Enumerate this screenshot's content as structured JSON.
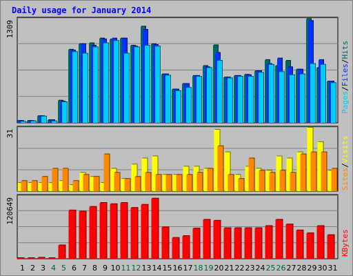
{
  "title": "Daily usage for January 2014",
  "colors": {
    "background": "#c0c0c0",
    "panel": "#c0c0c0",
    "grid": "#808080",
    "hits": "#006666",
    "files": "#0033ff",
    "pages": "#00ccff",
    "visits": "#ff8800",
    "sites": "#ffff00",
    "kbytes": "#ff0000",
    "weekend_label": "#006633",
    "weekday_label": "#000000"
  },
  "legend": {
    "top": [
      "Pages",
      "/",
      "Files",
      "/",
      "Hits"
    ],
    "middle": [
      "Sites",
      "/",
      "Visits"
    ],
    "bottom": [
      "KBytes"
    ]
  },
  "chart_data": [
    {
      "type": "bar",
      "panel": "hits-files-pages",
      "ylim": [
        0,
        1309
      ],
      "y_tick_label": "1309",
      "categories": [
        "1",
        "2",
        "3",
        "4",
        "5",
        "6",
        "7",
        "8",
        "9",
        "10",
        "11",
        "12",
        "13",
        "14",
        "15",
        "16",
        "17",
        "18",
        "19",
        "20",
        "21",
        "22",
        "23",
        "24",
        "25",
        "26",
        "27",
        "28",
        "29",
        "30",
        "31"
      ],
      "series": [
        {
          "name": "Hits",
          "values": [
            25,
            25,
            85,
            35,
            280,
            920,
            990,
            1000,
            1060,
            1050,
            1060,
            970,
            1210,
            990,
            610,
            420,
            490,
            590,
            715,
            975,
            570,
            590,
            605,
            650,
            790,
            715,
            780,
            670,
            1305,
            690,
            520
          ]
        },
        {
          "name": "Files",
          "values": [
            25,
            25,
            85,
            35,
            270,
            910,
            990,
            970,
            1050,
            1060,
            1060,
            960,
            1170,
            980,
            610,
            420,
            490,
            590,
            700,
            880,
            570,
            590,
            600,
            650,
            740,
            810,
            700,
            670,
            1280,
            790,
            520
          ]
        },
        {
          "name": "Pages",
          "values": [
            15,
            20,
            80,
            20,
            260,
            890,
            870,
            950,
            1000,
            1030,
            870,
            950,
            970,
            960,
            595,
            400,
            440,
            580,
            690,
            780,
            560,
            580,
            580,
            630,
            730,
            640,
            600,
            610,
            740,
            730,
            500
          ]
        }
      ]
    },
    {
      "type": "bar",
      "panel": "visits-sites",
      "ylim": [
        0,
        31
      ],
      "y_tick_label": "31",
      "categories": [
        "1",
        "2",
        "3",
        "4",
        "5",
        "6",
        "7",
        "8",
        "9",
        "10",
        "11",
        "12",
        "13",
        "14",
        "15",
        "16",
        "17",
        "18",
        "19",
        "20",
        "21",
        "22",
        "23",
        "24",
        "25",
        "26",
        "27",
        "28",
        "29",
        "30",
        "31"
      ],
      "series": [
        {
          "name": "Sites",
          "values": [
            4,
            4,
            4,
            4,
            5,
            3,
            9,
            7,
            4,
            11,
            6,
            13,
            16,
            17,
            8,
            8,
            12,
            12,
            11,
            30,
            19,
            8,
            12,
            11,
            10,
            17,
            16,
            19,
            31,
            24,
            10
          ]
        },
        {
          "name": "Visits",
          "values": [
            5,
            5,
            7,
            11,
            11,
            5,
            8,
            7,
            18,
            9,
            6,
            7,
            9,
            8,
            8,
            8,
            8,
            9,
            11,
            22,
            8,
            6,
            16,
            10,
            9,
            10,
            9,
            18,
            19,
            19,
            11
          ]
        }
      ]
    },
    {
      "type": "bar",
      "panel": "kbytes",
      "ylim": [
        0,
        120649
      ],
      "y_tick_label": "120649",
      "categories": [
        "1",
        "2",
        "3",
        "4",
        "5",
        "6",
        "7",
        "8",
        "9",
        "10",
        "11",
        "12",
        "13",
        "14",
        "15",
        "16",
        "17",
        "18",
        "19",
        "20",
        "21",
        "22",
        "23",
        "24",
        "25",
        "26",
        "27",
        "28",
        "29",
        "30",
        "31"
      ],
      "series": [
        {
          "name": "KBytes",
          "values": [
            900,
            900,
            2100,
            900,
            25800,
            93000,
            91000,
            99800,
            107400,
            105000,
            107400,
            97800,
            103800,
            115800,
            60600,
            40200,
            43800,
            58200,
            75000,
            73200,
            58800,
            58800,
            58800,
            58800,
            63000,
            75000,
            66000,
            54600,
            49200,
            63000,
            45600
          ]
        }
      ]
    }
  ],
  "x_labels": [
    {
      "text": "1",
      "weekend": false
    },
    {
      "text": "2",
      "weekend": false
    },
    {
      "text": "3",
      "weekend": false
    },
    {
      "text": "4",
      "weekend": true
    },
    {
      "text": "5",
      "weekend": true
    },
    {
      "text": "6",
      "weekend": false
    },
    {
      "text": "7",
      "weekend": false
    },
    {
      "text": "8",
      "weekend": false
    },
    {
      "text": "9",
      "weekend": false
    },
    {
      "text": "10",
      "weekend": false
    },
    {
      "text": "11",
      "weekend": true
    },
    {
      "text": "12",
      "weekend": true
    },
    {
      "text": "13",
      "weekend": false
    },
    {
      "text": "14",
      "weekend": false
    },
    {
      "text": "15",
      "weekend": false
    },
    {
      "text": "16",
      "weekend": false
    },
    {
      "text": "17",
      "weekend": false
    },
    {
      "text": "18",
      "weekend": true
    },
    {
      "text": "19",
      "weekend": true
    },
    {
      "text": "20",
      "weekend": false
    },
    {
      "text": "21",
      "weekend": false
    },
    {
      "text": "22",
      "weekend": false
    },
    {
      "text": "23",
      "weekend": false
    },
    {
      "text": "24",
      "weekend": false
    },
    {
      "text": "25",
      "weekend": true
    },
    {
      "text": "26",
      "weekend": true
    },
    {
      "text": "27",
      "weekend": false
    },
    {
      "text": "28",
      "weekend": false
    },
    {
      "text": "29",
      "weekend": false
    },
    {
      "text": "30",
      "weekend": false
    },
    {
      "text": "31",
      "weekend": false
    }
  ]
}
